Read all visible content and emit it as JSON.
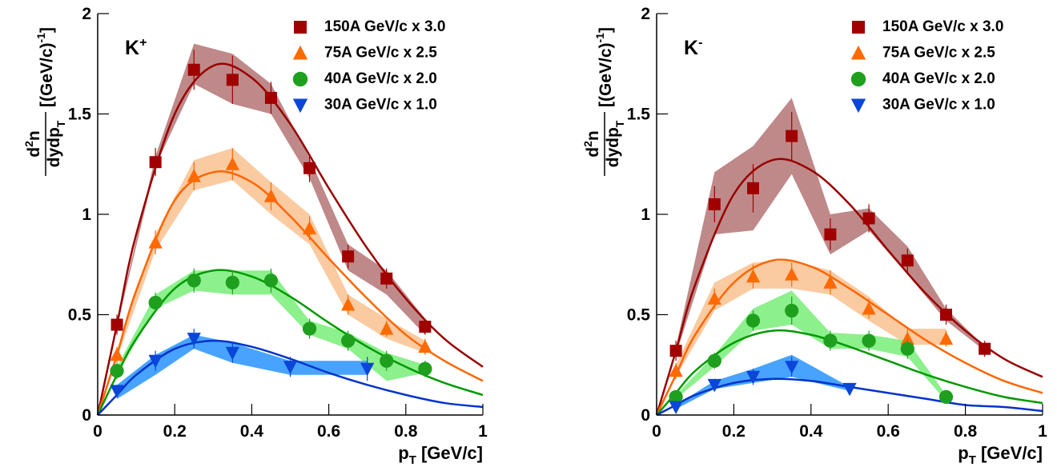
{
  "chart_data": [
    {
      "type": "scatter",
      "panel_label": "K",
      "panel_label_sup": "+",
      "ylabel": {
        "num": "d",
        "num_sup": "2",
        "num_end": "n",
        "den": "dydp",
        "den_sub": "T",
        "unit": "[(GeV/c)",
        "unit_sup": "-1",
        "unit_end": "]"
      },
      "xlabel": {
        "main": "p",
        "sub": "T",
        "unit": " [GeV/c]"
      },
      "xlim": [
        0,
        1
      ],
      "ylim": [
        0,
        2
      ],
      "xticks": [
        0,
        0.2,
        0.4,
        0.6,
        0.8,
        1
      ],
      "yticks": [
        0,
        0.5,
        1,
        1.5,
        2
      ],
      "fit_x": [
        0,
        0.05,
        0.1,
        0.2,
        0.3,
        0.4,
        0.5,
        0.6,
        0.7,
        0.8,
        0.9,
        1.0
      ],
      "series": [
        {
          "name": "150A GeV/c x 3.0",
          "marker": "square",
          "color": "#a00000",
          "band_color": "#b87c7c",
          "fit_color": "#990000",
          "x": [
            0.05,
            0.15,
            0.25,
            0.35,
            0.45,
            0.55,
            0.65,
            0.75,
            0.85
          ],
          "values": [
            0.45,
            1.26,
            1.72,
            1.67,
            1.58,
            1.23,
            0.79,
            0.68,
            0.44
          ],
          "errors": [
            0.05,
            0.07,
            0.1,
            0.12,
            0.08,
            0.07,
            0.06,
            0.05,
            0.04
          ],
          "band_low": [
            0.44,
            1.24,
            1.65,
            1.55,
            1.5,
            1.18,
            0.72,
            0.6,
            0.4
          ],
          "band_high": [
            0.46,
            1.29,
            1.85,
            1.8,
            1.65,
            1.28,
            0.85,
            0.72,
            0.48
          ],
          "fit": [
            0,
            0.45,
            0.9,
            1.5,
            1.74,
            1.68,
            1.45,
            1.13,
            0.83,
            0.58,
            0.38,
            0.24
          ]
        },
        {
          "name": "75A GeV/c x 2.5",
          "marker": "triangle-up",
          "color": "#ff6a00",
          "band_color": "#f9c497",
          "fit_color": "#ff6600",
          "x": [
            0.05,
            0.15,
            0.25,
            0.35,
            0.45,
            0.55,
            0.65,
            0.75,
            0.85
          ],
          "values": [
            0.3,
            0.86,
            1.19,
            1.25,
            1.09,
            0.93,
            0.55,
            0.43,
            0.34
          ],
          "errors": [
            0.04,
            0.06,
            0.07,
            0.08,
            0.07,
            0.06,
            0.05,
            0.04,
            0.04
          ],
          "band_low": [
            0.28,
            0.82,
            1.12,
            1.17,
            1.0,
            0.85,
            0.5,
            0.38,
            0.31
          ],
          "band_high": [
            0.32,
            0.9,
            1.27,
            1.33,
            1.16,
            1.0,
            0.6,
            0.48,
            0.37
          ],
          "fit": [
            0,
            0.3,
            0.62,
            1.07,
            1.21,
            1.16,
            0.99,
            0.78,
            0.58,
            0.4,
            0.27,
            0.17
          ]
        },
        {
          "name": "40A GeV/c x 2.0",
          "marker": "circle",
          "color": "#1ea01e",
          "band_color": "#80ee80",
          "fit_color": "#009900",
          "x": [
            0.05,
            0.15,
            0.25,
            0.35,
            0.45,
            0.55,
            0.65,
            0.75,
            0.85
          ],
          "values": [
            0.22,
            0.56,
            0.67,
            0.66,
            0.67,
            0.43,
            0.37,
            0.27,
            0.23
          ],
          "errors": [
            0.04,
            0.05,
            0.06,
            0.06,
            0.06,
            0.05,
            0.05,
            0.05,
            0.04
          ],
          "band_low": [
            0.2,
            0.53,
            0.62,
            0.6,
            0.6,
            0.4,
            0.33,
            0.17,
            0.21
          ],
          "band_high": [
            0.24,
            0.6,
            0.72,
            0.72,
            0.72,
            0.47,
            0.41,
            0.31,
            0.25
          ],
          "fit": [
            0,
            0.2,
            0.38,
            0.63,
            0.72,
            0.69,
            0.59,
            0.46,
            0.34,
            0.24,
            0.16,
            0.1
          ]
        },
        {
          "name": "30A GeV/c x 1.0",
          "marker": "triangle-down",
          "color": "#0a46d8",
          "band_color": "#3399ff",
          "fit_color": "#0033cc",
          "x": [
            0.05,
            0.15,
            0.25,
            0.35,
            0.5,
            0.7
          ],
          "values": [
            0.12,
            0.27,
            0.38,
            0.31,
            0.24,
            0.23
          ],
          "errors": [
            0.03,
            0.05,
            0.05,
            0.05,
            0.05,
            0.06
          ],
          "band_low": [
            0.08,
            0.2,
            0.33,
            0.26,
            0.2,
            0.2
          ],
          "band_high": [
            0.15,
            0.3,
            0.4,
            0.36,
            0.27,
            0.27
          ],
          "fit": [
            0,
            0.1,
            0.2,
            0.33,
            0.37,
            0.34,
            0.28,
            0.21,
            0.15,
            0.1,
            0.06,
            0.04
          ]
        }
      ]
    },
    {
      "type": "scatter",
      "panel_label": "K",
      "panel_label_sup": "-",
      "ylabel": {
        "num": "d",
        "num_sup": "2",
        "num_end": "n",
        "den": "dydp",
        "den_sub": "T",
        "unit": "[(GeV/c)",
        "unit_sup": "-1",
        "unit_end": "]"
      },
      "xlabel": {
        "main": "p",
        "sub": "T",
        "unit": " [GeV/c]"
      },
      "xlim": [
        0,
        1
      ],
      "ylim": [
        0,
        2
      ],
      "xticks": [
        0,
        0.2,
        0.4,
        0.6,
        0.8,
        1
      ],
      "yticks": [
        0,
        0.5,
        1,
        1.5,
        2
      ],
      "fit_x": [
        0,
        0.05,
        0.1,
        0.2,
        0.3,
        0.4,
        0.5,
        0.6,
        0.7,
        0.8,
        0.9,
        1.0
      ],
      "series": [
        {
          "name": "150A GeV/c x 3.0",
          "marker": "square",
          "color": "#a00000",
          "band_color": "#b87c7c",
          "fit_color": "#990000",
          "x": [
            0.05,
            0.15,
            0.25,
            0.35,
            0.45,
            0.55,
            0.65,
            0.75,
            0.85
          ],
          "values": [
            0.32,
            1.05,
            1.13,
            1.39,
            0.9,
            0.98,
            0.77,
            0.5,
            0.33
          ],
          "errors": [
            0.05,
            0.09,
            0.12,
            0.12,
            0.08,
            0.07,
            0.06,
            0.05,
            0.04
          ],
          "band_low": [
            0.3,
            0.9,
            0.92,
            1.2,
            0.8,
            0.92,
            0.7,
            0.47,
            0.32
          ],
          "band_high": [
            0.34,
            1.21,
            1.34,
            1.58,
            1.0,
            1.03,
            0.84,
            0.53,
            0.34
          ],
          "fit": [
            0,
            0.32,
            0.65,
            1.1,
            1.27,
            1.22,
            1.05,
            0.82,
            0.6,
            0.42,
            0.28,
            0.19
          ]
        },
        {
          "name": "75A GeV/c x 2.5",
          "marker": "triangle-up",
          "color": "#ff6a00",
          "band_color": "#f9c497",
          "fit_color": "#ff6600",
          "x": [
            0.05,
            0.15,
            0.25,
            0.35,
            0.45,
            0.55,
            0.65,
            0.75
          ],
          "values": [
            0.22,
            0.58,
            0.69,
            0.7,
            0.66,
            0.53,
            0.38,
            0.38
          ],
          "errors": [
            0.04,
            0.05,
            0.06,
            0.06,
            0.06,
            0.05,
            0.05,
            0.04
          ],
          "band_low": [
            0.19,
            0.52,
            0.63,
            0.63,
            0.6,
            0.47,
            0.35,
            0.35
          ],
          "band_high": [
            0.25,
            0.66,
            0.76,
            0.77,
            0.72,
            0.59,
            0.43,
            0.43
          ],
          "fit": [
            0,
            0.2,
            0.4,
            0.66,
            0.77,
            0.74,
            0.63,
            0.5,
            0.37,
            0.26,
            0.17,
            0.11
          ]
        },
        {
          "name": "40A GeV/c x 2.0",
          "marker": "circle",
          "color": "#1ea01e",
          "band_color": "#80ee80",
          "fit_color": "#009900",
          "x": [
            0.05,
            0.15,
            0.25,
            0.35,
            0.45,
            0.55,
            0.65,
            0.75
          ],
          "values": [
            0.09,
            0.27,
            0.47,
            0.52,
            0.37,
            0.37,
            0.33,
            0.09
          ],
          "errors": [
            0.03,
            0.04,
            0.05,
            0.07,
            0.05,
            0.05,
            0.05,
            0.03
          ],
          "band_low": [
            0.08,
            0.24,
            0.42,
            0.45,
            0.33,
            0.33,
            0.29,
            0.07
          ],
          "band_high": [
            0.1,
            0.3,
            0.53,
            0.62,
            0.41,
            0.4,
            0.37,
            0.1
          ],
          "fit": [
            0,
            0.11,
            0.22,
            0.36,
            0.42,
            0.4,
            0.34,
            0.27,
            0.2,
            0.14,
            0.09,
            0.06
          ]
        },
        {
          "name": "30A GeV/c x 1.0",
          "marker": "triangle-down",
          "color": "#0a46d8",
          "band_color": "#3399ff",
          "fit_color": "#0033cc",
          "x": [
            0.05,
            0.15,
            0.25,
            0.35,
            0.5
          ],
          "values": [
            0.04,
            0.15,
            0.19,
            0.24,
            0.13
          ],
          "errors": [
            0.02,
            0.03,
            0.04,
            0.05,
            0.03
          ],
          "band_low": [
            0.03,
            0.13,
            0.16,
            0.19,
            0.12
          ],
          "band_high": [
            0.05,
            0.17,
            0.23,
            0.3,
            0.14
          ],
          "fit": [
            0,
            0.05,
            0.1,
            0.16,
            0.18,
            0.17,
            0.14,
            0.11,
            0.08,
            0.05,
            0.04,
            0.02
          ]
        }
      ]
    }
  ]
}
